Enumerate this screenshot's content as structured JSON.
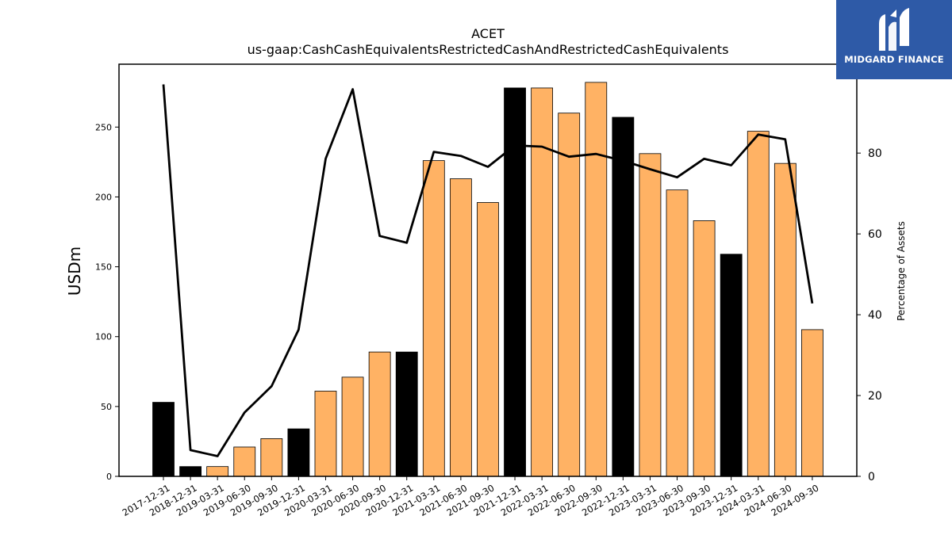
{
  "chart_data": {
    "type": "bar",
    "title": "ACET",
    "subtitle": "us-gaap:CashCashEquivalentsRestrictedCashAndRestrictedCashEquivalents",
    "ylabel": "USDm",
    "y2label": "Percentage of Assets",
    "ylim": [
      0,
      295
    ],
    "y2lim": [
      0,
      102
    ],
    "yticks": [
      0,
      50,
      100,
      150,
      200,
      250
    ],
    "y2ticks": [
      0,
      20,
      40,
      60,
      80
    ],
    "categories": [
      "2017-12-31",
      "2018-12-31",
      "2019-03-31",
      "2019-06-30",
      "2019-09-30",
      "2019-12-31",
      "2020-03-31",
      "2020-06-30",
      "2020-09-30",
      "2020-12-31",
      "2021-03-31",
      "2021-06-30",
      "2021-09-30",
      "2021-12-31",
      "2022-03-31",
      "2022-06-30",
      "2022-09-30",
      "2022-12-31",
      "2023-03-31",
      "2023-06-30",
      "2023-09-30",
      "2023-12-31",
      "2024-03-31",
      "2024-06-30",
      "2024-09-30"
    ],
    "series": [
      {
        "type": "bar",
        "values": [
          53,
          7,
          7,
          21,
          27,
          34,
          61,
          71,
          89,
          89,
          226,
          213,
          196,
          278,
          278,
          260,
          282,
          257,
          231,
          205,
          183,
          159,
          247,
          224,
          105
        ],
        "annual": [
          true,
          true,
          false,
          false,
          false,
          true,
          false,
          false,
          false,
          true,
          false,
          false,
          false,
          true,
          false,
          false,
          false,
          true,
          false,
          false,
          false,
          true,
          false,
          false,
          false
        ]
      },
      {
        "type": "line",
        "axis": "right",
        "values": [
          97.0,
          6.5,
          5.0,
          15.8,
          22.3,
          36.3,
          78.6,
          95.8,
          59.5,
          57.8,
          80.3,
          79.3,
          76.6,
          81.9,
          81.6,
          79.1,
          79.8,
          78.1,
          76.0,
          74.0,
          78.6,
          77.0,
          84.6,
          83.4,
          42.8
        ]
      }
    ],
    "colors": {
      "annual_bar": "#000000",
      "quarter_bar": "#ffb264",
      "line": "#000000"
    },
    "grid": false
  },
  "logo": {
    "text": "MIDGARD FINANCE",
    "icon": "midgard-logo-icon"
  }
}
